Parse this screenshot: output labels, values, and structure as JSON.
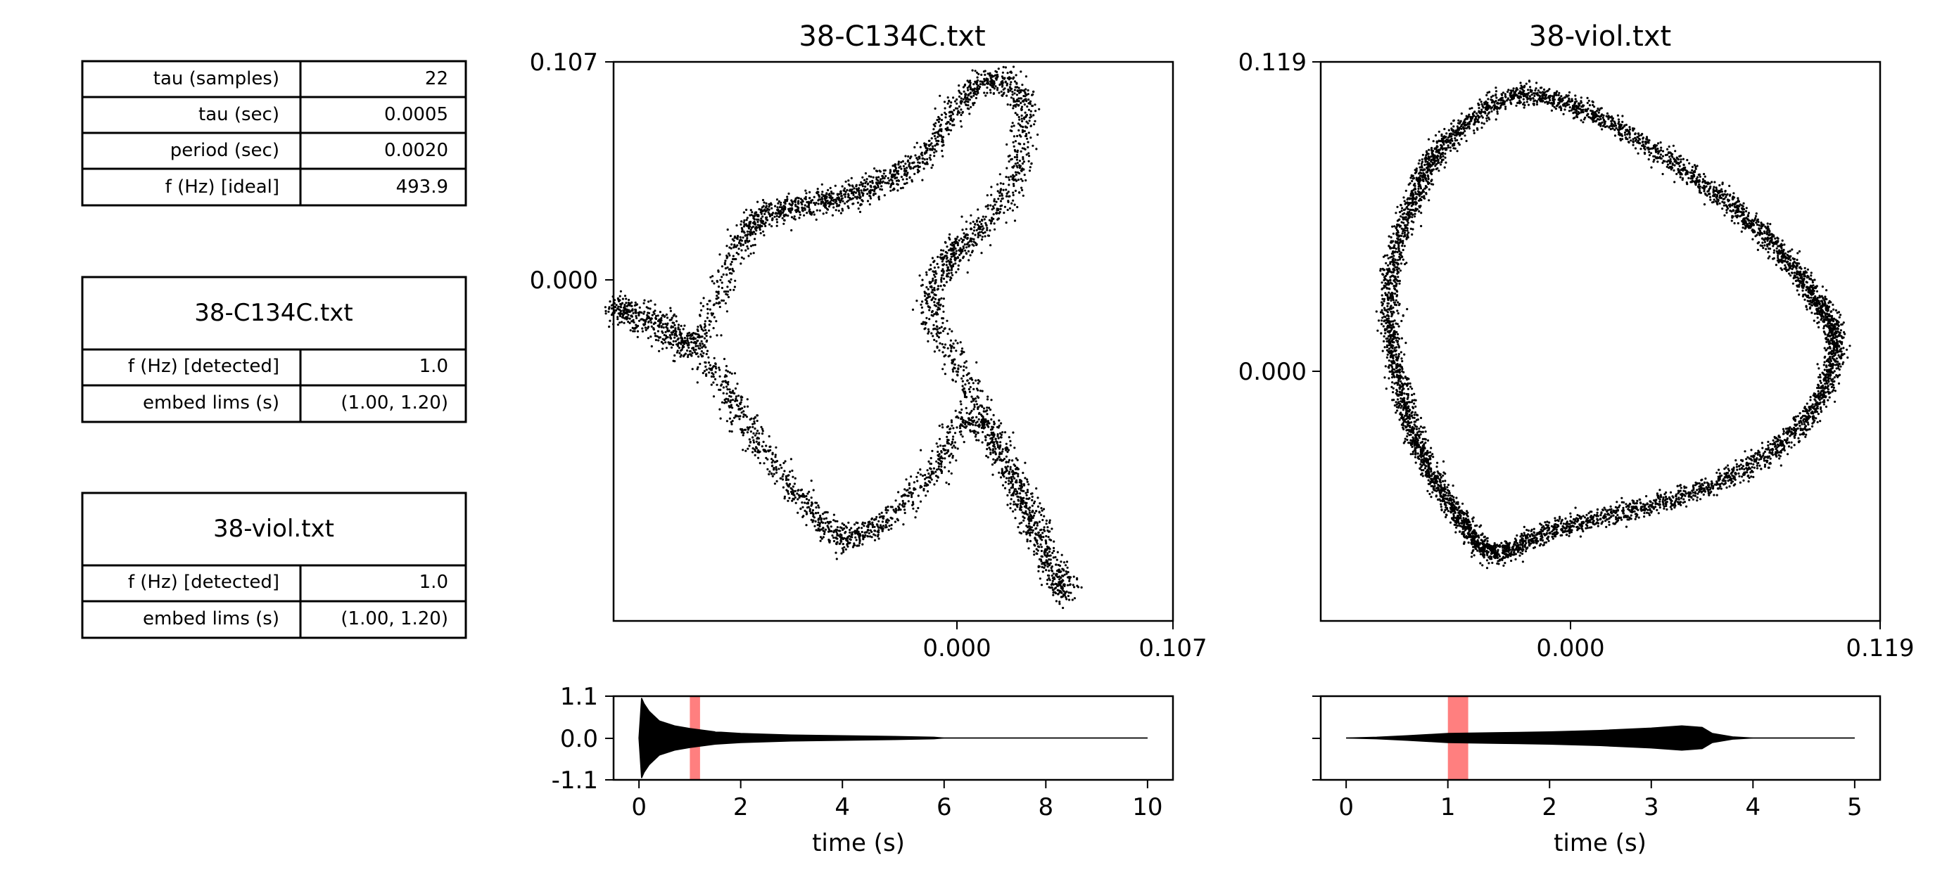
{
  "params_table": {
    "rows": [
      {
        "label": "tau (samples)",
        "value": "22"
      },
      {
        "label": "tau (sec)",
        "value": "0.0005"
      },
      {
        "label": "period (sec)",
        "value": "0.0020"
      },
      {
        "label": "f (Hz) [ideal]",
        "value": "493.9"
      }
    ]
  },
  "file_tables": [
    {
      "title": "38-C134C.txt",
      "rows": [
        {
          "label": "f (Hz) [detected]",
          "value": "1.0"
        },
        {
          "label": "embed lims (s)",
          "value": "(1.00, 1.20)"
        }
      ]
    },
    {
      "title": "38-viol.txt",
      "rows": [
        {
          "label": "f (Hz) [detected]",
          "value": "1.0"
        },
        {
          "label": "embed lims (s)",
          "value": "(1.00, 1.20)"
        }
      ]
    }
  ],
  "chart_data": [
    {
      "type": "scatter",
      "title": "38-C134C.txt",
      "xlabel": "",
      "ylabel": "",
      "xlim": [
        -0.107,
        0.107
      ],
      "ylim": [
        -0.107,
        0.107
      ],
      "xticks": [
        {
          "value": 0.0,
          "label": "0.000"
        },
        {
          "value": 0.107,
          "label": "0.107"
        }
      ],
      "yticks": [
        {
          "value": 0.0,
          "label": "0.000"
        },
        {
          "value": 0.107,
          "label": "0.107"
        }
      ],
      "marker_color": "#000000",
      "shape_description_points": [
        [
          -0.105,
          0.012
        ],
        [
          -0.09,
          0.008
        ],
        [
          -0.075,
          0.0
        ],
        [
          -0.06,
          0.035
        ],
        [
          -0.05,
          0.048
        ],
        [
          -0.035,
          0.052
        ],
        [
          -0.02,
          0.055
        ],
        [
          -0.005,
          0.06
        ],
        [
          0.01,
          0.07
        ],
        [
          0.025,
          0.09
        ],
        [
          0.038,
          0.1
        ],
        [
          0.05,
          0.09
        ],
        [
          0.045,
          0.06
        ],
        [
          0.03,
          0.04
        ],
        [
          0.02,
          0.03
        ],
        [
          0.015,
          0.01
        ],
        [
          0.03,
          -0.02
        ],
        [
          0.045,
          -0.05
        ],
        [
          0.055,
          -0.075
        ],
        [
          0.065,
          -0.095
        ],
        [
          0.05,
          -0.06
        ],
        [
          0.03,
          -0.03
        ],
        [
          0.015,
          -0.05
        ],
        [
          -0.005,
          -0.07
        ],
        [
          -0.02,
          -0.075
        ],
        [
          -0.035,
          -0.06
        ],
        [
          -0.055,
          -0.035
        ],
        [
          -0.07,
          -0.01
        ]
      ],
      "inset": {
        "type": "area",
        "xlabel": "time (s)",
        "xlim": [
          -0.5,
          10.5
        ],
        "ylim": [
          -1.1,
          1.1
        ],
        "xticks": [
          0,
          2,
          4,
          6,
          8,
          10
        ],
        "yticks": [
          {
            "value": 1.1,
            "label": "1.1"
          },
          {
            "value": 0.0,
            "label": "0.0"
          },
          {
            "value": -1.1,
            "label": "-1.1"
          }
        ],
        "envelope": {
          "t": [
            0,
            0.05,
            0.1,
            0.2,
            0.4,
            0.7,
            1.0,
            1.5,
            2.0,
            3.0,
            4.0,
            5.0,
            5.8,
            6.0,
            10.0
          ],
          "amp": [
            0.0,
            1.05,
            0.9,
            0.7,
            0.45,
            0.32,
            0.25,
            0.16,
            0.12,
            0.08,
            0.06,
            0.04,
            0.02,
            0.0,
            0.0
          ]
        },
        "highlight": {
          "from": 1.0,
          "to": 1.2,
          "color": "#ff7f7f"
        }
      }
    },
    {
      "type": "scatter",
      "title": "38-viol.txt",
      "xlabel": "",
      "ylabel": "",
      "xlim": [
        -0.119,
        0.119
      ],
      "ylim": [
        -0.119,
        0.119
      ],
      "xticks": [
        {
          "value": 0.0,
          "label": "0.000"
        },
        {
          "value": 0.119,
          "label": "0.119"
        }
      ],
      "yticks": [
        {
          "value": 0.0,
          "label": "0.000"
        },
        {
          "value": 0.119,
          "label": "0.119"
        }
      ],
      "marker_color": "#000000",
      "shape_description_points": [
        [
          -0.035,
          0.105
        ],
        [
          0.0,
          0.095
        ],
        [
          0.04,
          0.07
        ],
        [
          0.07,
          0.045
        ],
        [
          0.09,
          0.02
        ],
        [
          0.1,
          0.0
        ],
        [
          0.09,
          -0.03
        ],
        [
          0.06,
          -0.055
        ],
        [
          0.02,
          -0.07
        ],
        [
          -0.02,
          -0.08
        ],
        [
          -0.045,
          -0.09
        ],
        [
          -0.06,
          -0.075
        ],
        [
          -0.075,
          -0.05
        ],
        [
          -0.085,
          -0.02
        ],
        [
          -0.09,
          0.02
        ],
        [
          -0.08,
          0.06
        ],
        [
          -0.065,
          0.085
        ]
      ],
      "inset": {
        "type": "area",
        "xlabel": "time (s)",
        "xlim": [
          -0.25,
          5.25
        ],
        "ylim": [
          -1.1,
          1.1
        ],
        "xticks": [
          0,
          1,
          2,
          3,
          4,
          5
        ],
        "yticks": [],
        "envelope": {
          "t": [
            0,
            0.3,
            0.6,
            1.0,
            1.5,
            2.0,
            2.5,
            3.0,
            3.3,
            3.5,
            3.6,
            3.8,
            4.0,
            5.0
          ],
          "amp": [
            0.0,
            0.02,
            0.06,
            0.12,
            0.14,
            0.16,
            0.2,
            0.26,
            0.32,
            0.28,
            0.12,
            0.03,
            0.0,
            0.0
          ]
        },
        "highlight": {
          "from": 1.0,
          "to": 1.2,
          "color": "#ff7f7f"
        }
      }
    }
  ]
}
